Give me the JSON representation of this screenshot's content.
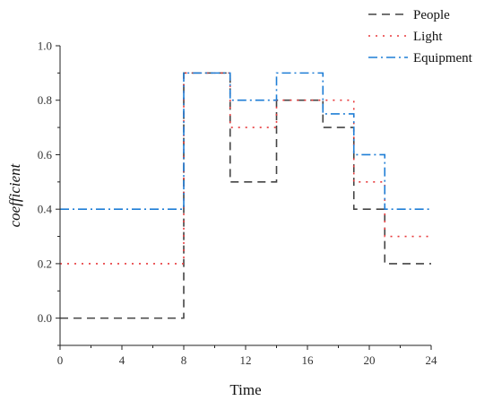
{
  "chart_data": {
    "type": "line",
    "step": true,
    "title": "",
    "xlabel": "Time",
    "ylabel": "coefficient",
    "xlim": [
      0,
      24
    ],
    "ylim": [
      -0.1,
      1.0
    ],
    "xticks": [
      0,
      4,
      8,
      12,
      16,
      20,
      24
    ],
    "yticks": [
      0.0,
      0.2,
      0.4,
      0.6,
      0.8,
      1.0
    ],
    "xtick_labels": [
      "0",
      "4",
      "8",
      "12",
      "16",
      "20",
      "24"
    ],
    "ytick_labels": [
      "0.0",
      "0.2",
      "0.4",
      "0.6",
      "0.8",
      "1.0"
    ],
    "grid": false,
    "legend_position": "top-right",
    "series": [
      {
        "name": "People",
        "color": "#444444",
        "dash": "dashed",
        "x": [
          0,
          8,
          11,
          14,
          17,
          19,
          21,
          24
        ],
        "y": [
          0.0,
          0.9,
          0.5,
          0.8,
          0.7,
          0.4,
          0.2,
          0.2
        ]
      },
      {
        "name": "Light",
        "color": "#e8393b",
        "dash": "dotted",
        "x": [
          0,
          8,
          11,
          14,
          17,
          19,
          21,
          24
        ],
        "y": [
          0.2,
          0.9,
          0.7,
          0.8,
          0.8,
          0.5,
          0.3,
          0.3
        ]
      },
      {
        "name": "Equipment",
        "color": "#1f7ed6",
        "dash": "dashdot",
        "x": [
          0,
          8,
          11,
          14,
          17,
          19,
          21,
          24
        ],
        "y": [
          0.4,
          0.9,
          0.8,
          0.9,
          0.75,
          0.6,
          0.4,
          0.4
        ]
      }
    ]
  }
}
